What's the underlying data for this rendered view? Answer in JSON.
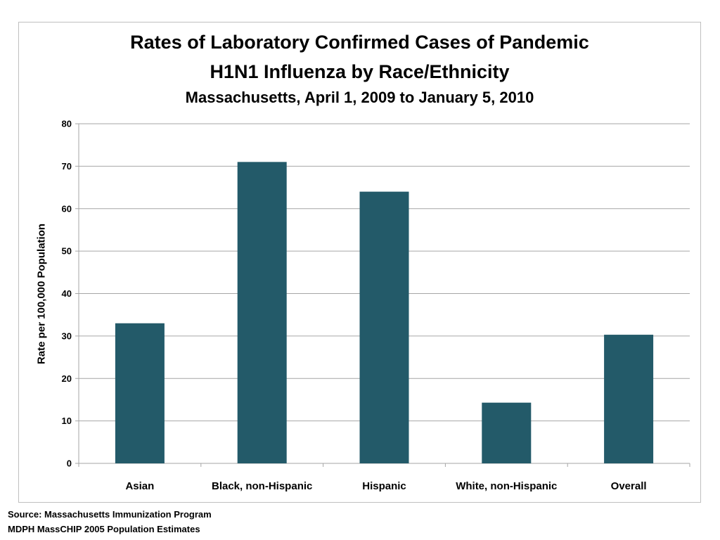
{
  "chart_data": {
    "type": "bar",
    "title": "Rates of Laboratory Confirmed Cases of Pandemic",
    "title_line2": "H1N1 Influenza by Race/Ethnicity",
    "subtitle": "Massachusetts, April 1, 2009 to January 5, 2010",
    "xlabel": "",
    "ylabel": "Rate per 100,000 Population",
    "categories": [
      "Asian",
      "Black, non-Hispanic",
      "Hispanic",
      "White, non-Hispanic",
      "Overall"
    ],
    "values": [
      33,
      71,
      64,
      14.3,
      30.3
    ],
    "ylim": [
      0,
      80
    ],
    "yticks": [
      0,
      10,
      20,
      30,
      40,
      50,
      60,
      70,
      80
    ],
    "grid": true,
    "legend": "none",
    "bar_color": "#235a69",
    "gridline_color": "#a6a6a6"
  },
  "source": {
    "line1": "Source: Massachusetts Immunization Program",
    "line2": "MDPH MassCHIP 2005 Population Estimates"
  }
}
